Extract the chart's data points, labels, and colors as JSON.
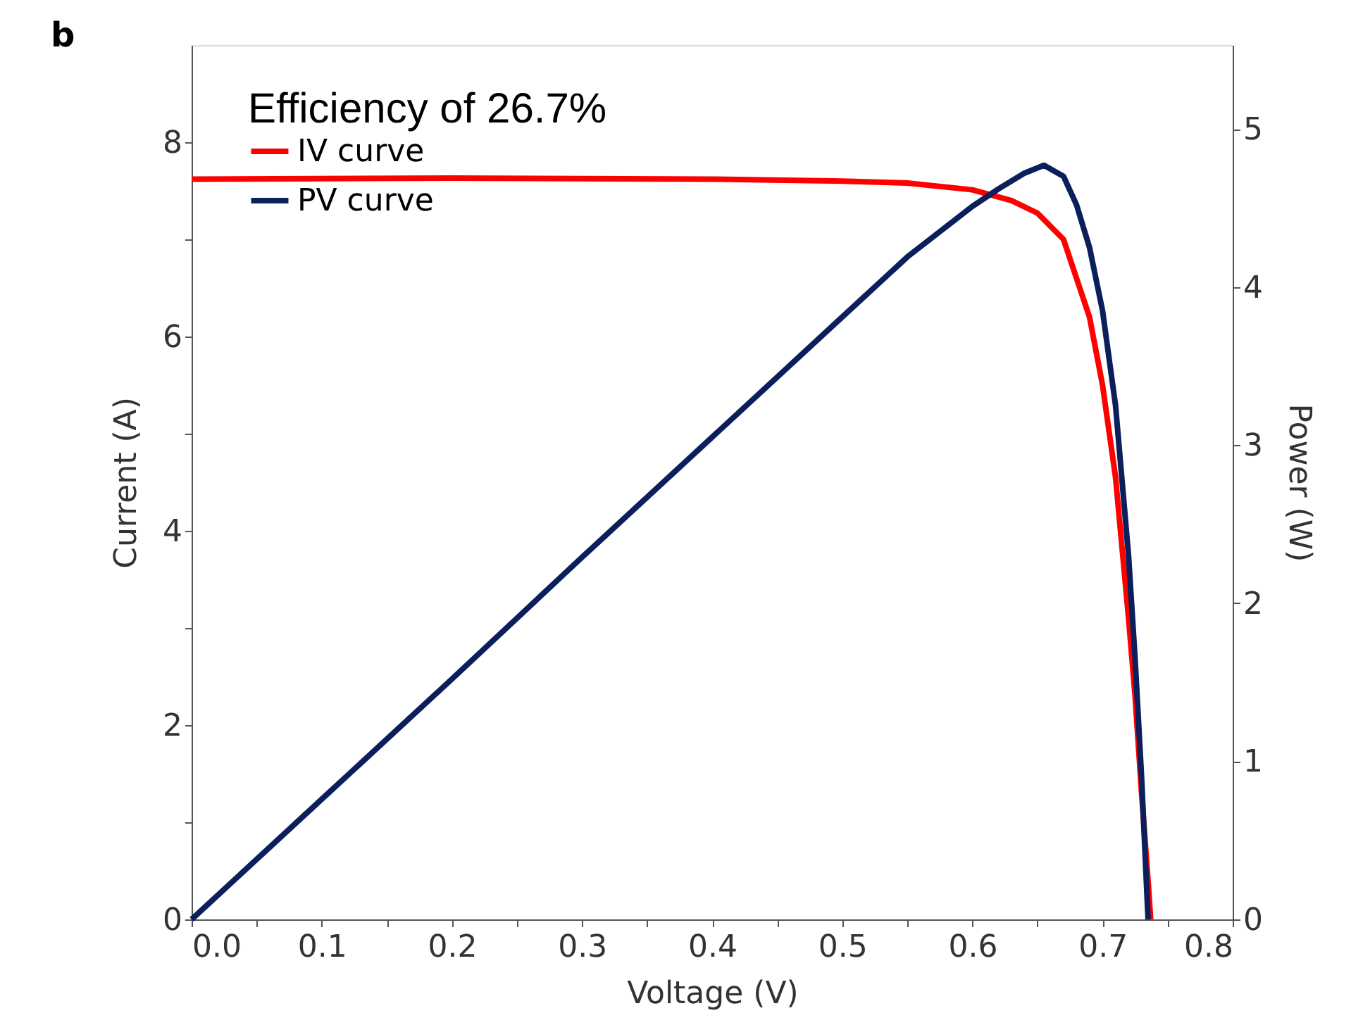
{
  "chart_data": {
    "type": "line",
    "xlabel": "Voltage (V)",
    "ylabel": "Current (A)",
    "y2label": "Power (W)",
    "annotations": [
      "b",
      "Efficiency of 26.7%"
    ],
    "xlim": [
      0,
      0.8
    ],
    "ylim": [
      0,
      9
    ],
    "y2lim": [
      0,
      5.53
    ],
    "xticks": [
      {
        "value": 0,
        "label": "0.0"
      },
      {
        "value": 0.05,
        "label": null
      },
      {
        "value": 0.1,
        "label": "0.1"
      },
      {
        "value": 0.15,
        "label": null
      },
      {
        "value": 0.2,
        "label": "0.2"
      },
      {
        "value": 0.25,
        "label": null
      },
      {
        "value": 0.3,
        "label": "0.3"
      },
      {
        "value": 0.35,
        "label": null
      },
      {
        "value": 0.4,
        "label": "0.4"
      },
      {
        "value": 0.45,
        "label": null
      },
      {
        "value": 0.5,
        "label": "0.5"
      },
      {
        "value": 0.55,
        "label": null
      },
      {
        "value": 0.6,
        "label": "0.6"
      },
      {
        "value": 0.65,
        "label": null
      },
      {
        "value": 0.7,
        "label": "0.7"
      },
      {
        "value": 0.75,
        "label": null
      },
      {
        "value": 0.8,
        "label": "0.8"
      }
    ],
    "yticks": [
      0,
      {
        "value": 1,
        "label": null
      },
      2,
      {
        "value": 3,
        "label": null
      },
      4,
      {
        "value": 5,
        "label": null
      },
      6,
      {
        "value": 7,
        "label": null
      },
      8
    ],
    "y2ticks": [
      0,
      1,
      2,
      3,
      4,
      5
    ],
    "legend": "top left",
    "grid": false,
    "marker": "none",
    "line_style": "solid",
    "series": [
      {
        "name": "IV curve",
        "color": "#ff0000",
        "x": [
          0,
          0.2,
          0.4,
          0.5,
          0.55,
          0.6,
          0.63,
          0.65,
          0.67,
          0.69,
          0.7,
          0.71,
          0.72,
          0.725,
          0.73,
          0.735,
          0.737
        ],
        "values": [
          7.62,
          7.63,
          7.62,
          7.6,
          7.58,
          7.51,
          7.4,
          7.27,
          7.0,
          6.2,
          5.5,
          4.55,
          3.1,
          2.3,
          1.3,
          0.4,
          0
        ]
      },
      {
        "name": "PV curve",
        "color": "#0a1f5c",
        "axis": "y2",
        "x": [
          0,
          0.1,
          0.2,
          0.3,
          0.4,
          0.5,
          0.55,
          0.6,
          0.62,
          0.64,
          0.655,
          0.67,
          0.68,
          0.69,
          0.7,
          0.71,
          0.72,
          0.725,
          0.73,
          0.735
        ],
        "values": [
          0,
          0.76,
          1.52,
          2.29,
          3.05,
          3.81,
          4.19,
          4.51,
          4.62,
          4.72,
          4.77,
          4.7,
          4.52,
          4.25,
          3.85,
          3.25,
          2.3,
          1.65,
          0.9,
          0
        ]
      }
    ]
  }
}
